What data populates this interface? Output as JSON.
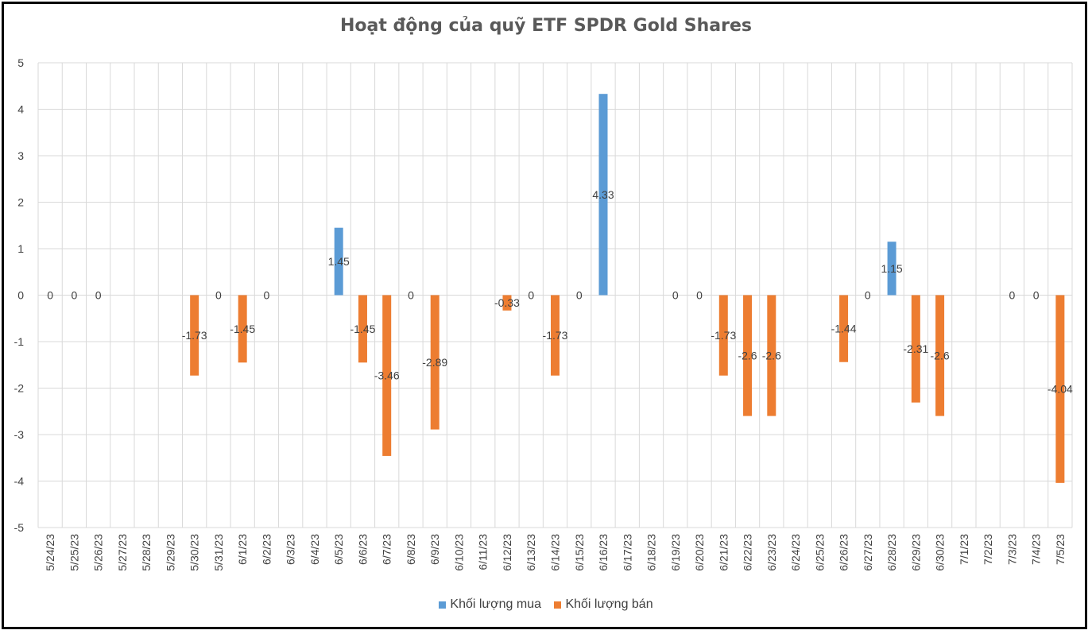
{
  "chart_data": {
    "type": "bar",
    "title": "Hoạt động của quỹ ETF SPDR Gold Shares",
    "categories": [
      "5/24/23",
      "5/25/23",
      "5/26/23",
      "5/27/23",
      "5/28/23",
      "5/29/23",
      "5/30/23",
      "5/31/23",
      "6/1/23",
      "6/2/23",
      "6/3/23",
      "6/4/23",
      "6/5/23",
      "6/6/23",
      "6/7/23",
      "6/8/23",
      "6/9/23",
      "6/10/23",
      "6/11/23",
      "6/12/23",
      "6/13/23",
      "6/14/23",
      "6/15/23",
      "6/16/23",
      "6/17/23",
      "6/18/23",
      "6/19/23",
      "6/20/23",
      "6/21/23",
      "6/22/23",
      "6/23/23",
      "6/24/23",
      "6/25/23",
      "6/26/23",
      "6/27/23",
      "6/28/23",
      "6/29/23",
      "6/30/23",
      "7/1/23",
      "7/2/23",
      "7/3/23",
      "7/4/23",
      "7/5/23"
    ],
    "series": [
      {
        "name": "Khối lượng mua",
        "color": "#5B9BD5",
        "values": [
          null,
          null,
          null,
          null,
          null,
          null,
          null,
          null,
          null,
          null,
          null,
          null,
          1.45,
          null,
          null,
          null,
          null,
          null,
          null,
          null,
          null,
          null,
          null,
          4.33,
          null,
          null,
          null,
          null,
          null,
          null,
          null,
          null,
          null,
          null,
          null,
          1.15,
          null,
          null,
          null,
          null,
          null,
          null,
          null
        ]
      },
      {
        "name": "Khối lượng bán",
        "color": "#ED7D31",
        "values": [
          null,
          null,
          null,
          null,
          null,
          null,
          -1.73,
          null,
          -1.45,
          null,
          null,
          null,
          null,
          -1.45,
          -3.46,
          null,
          -2.89,
          null,
          null,
          -0.33,
          null,
          -1.73,
          null,
          null,
          null,
          null,
          null,
          null,
          -1.73,
          -2.6,
          -2.6,
          null,
          null,
          -1.44,
          null,
          null,
          -2.31,
          -2.6,
          null,
          null,
          null,
          null,
          -4.04
        ]
      }
    ],
    "zero_labels": [
      0,
      1,
      2,
      7,
      9,
      15,
      20,
      22,
      26,
      27,
      34,
      40,
      41
    ],
    "ylim": [
      -5,
      5
    ],
    "yticks": [
      5,
      4,
      3,
      2,
      1,
      0,
      -1,
      -2,
      -3,
      -4,
      -5
    ],
    "grid": true,
    "legend": "bottom",
    "xlabel": "",
    "ylabel": ""
  }
}
